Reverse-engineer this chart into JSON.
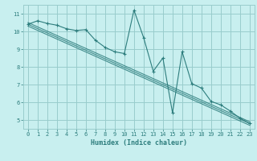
{
  "x_main": [
    0,
    1,
    2,
    3,
    4,
    5,
    6,
    7,
    8,
    9,
    10,
    11,
    12,
    13,
    14,
    15,
    16,
    17,
    18,
    19,
    20,
    21,
    22,
    23
  ],
  "y_main": [
    10.4,
    10.6,
    10.45,
    10.35,
    10.15,
    10.05,
    10.1,
    9.5,
    9.1,
    8.85,
    8.75,
    11.2,
    9.65,
    7.75,
    8.5,
    5.4,
    8.85,
    7.05,
    6.8,
    6.05,
    5.85,
    5.5,
    5.1,
    4.8
  ],
  "trend_x": [
    0,
    23
  ],
  "trend_lines": [
    [
      10.5,
      4.9
    ],
    [
      10.4,
      4.8
    ],
    [
      10.3,
      4.7
    ]
  ],
  "bg_color": "#c8efef",
  "grid_color": "#99cccc",
  "line_color": "#2d7d7d",
  "xlabel": "Humidex (Indice chaleur)",
  "xlim": [
    -0.5,
    23.5
  ],
  "ylim": [
    4.5,
    11.5
  ],
  "yticks": [
    5,
    6,
    7,
    8,
    9,
    10,
    11
  ],
  "xticks": [
    0,
    1,
    2,
    3,
    4,
    5,
    6,
    7,
    8,
    9,
    10,
    11,
    12,
    13,
    14,
    15,
    16,
    17,
    18,
    19,
    20,
    21,
    22,
    23
  ]
}
